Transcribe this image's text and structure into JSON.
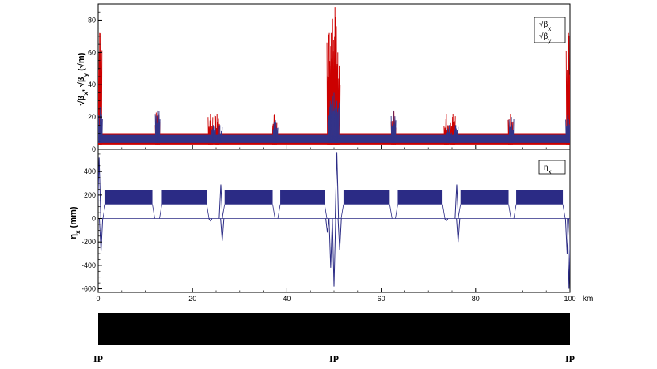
{
  "chart_data": [
    {
      "type": "line",
      "panel": "top",
      "ylabel": "√β_x, √β_y (√m)",
      "ylabel_parts": {
        "a": "√β",
        "a_sub": "x",
        "sep": ", ",
        "b": "√β",
        "b_sub": "y",
        "unit": " (√m)"
      },
      "ylim": [
        0,
        90
      ],
      "yticks": [
        "0",
        "20",
        "40",
        "60",
        "80"
      ],
      "ytick_values": [
        0,
        20,
        40,
        60,
        80
      ],
      "legend": {
        "placement": "top-right",
        "entries": [
          {
            "base": "√β",
            "sub": "x"
          },
          {
            "base": "√β",
            "sub": "y"
          }
        ]
      },
      "series": [
        {
          "key": "sqrt_beta_x",
          "color": "#cc0000",
          "band_range": [
            3,
            10
          ],
          "peaks": [
            [
              0.3,
              72
            ],
            [
              12.6,
              24
            ],
            [
              23.8,
              22
            ],
            [
              25.2,
              22
            ],
            [
              37.4,
              22
            ],
            [
              49.0,
              72
            ],
            [
              49.4,
              72
            ],
            [
              50.2,
              88
            ],
            [
              50.8,
              60
            ],
            [
              62.6,
              24
            ],
            [
              73.8,
              22
            ],
            [
              75.2,
              22
            ],
            [
              87.4,
              22
            ],
            [
              99.7,
              72
            ]
          ]
        },
        {
          "key": "sqrt_beta_y",
          "color": "#333388",
          "band_range": [
            4,
            9
          ],
          "peaks": [
            [
              0.4,
              26
            ],
            [
              12.6,
              24
            ],
            [
              24.4,
              15
            ],
            [
              25.8,
              15
            ],
            [
              37.6,
              18
            ],
            [
              49.2,
              30
            ],
            [
              50.0,
              35
            ],
            [
              50.6,
              30
            ],
            [
              62.6,
              24
            ],
            [
              74.4,
              15
            ],
            [
              75.8,
              15
            ],
            [
              87.6,
              20
            ],
            [
              99.6,
              26
            ]
          ]
        }
      ]
    },
    {
      "type": "line",
      "panel": "bottom",
      "ylabel": "η_x (mm)",
      "ylabel_parts": {
        "a": "η",
        "a_sub": "x",
        "unit": " (mm)"
      },
      "ylim": [
        -630,
        590
      ],
      "yticks": [
        "-600",
        "-400",
        "-200",
        "0",
        "200",
        "400"
      ],
      "ytick_values": [
        -600,
        -400,
        -200,
        0,
        200,
        400
      ],
      "legend": {
        "placement": "top-right",
        "entries": [
          {
            "base": "η",
            "sub": "x"
          }
        ]
      },
      "series": [
        {
          "key": "eta_x",
          "color": "#2b2b85",
          "arc_segments": [
            [
              1.5,
              11.5
            ],
            [
              13.5,
              23.0
            ],
            [
              26.8,
              37.0
            ],
            [
              38.6,
              48.0
            ],
            [
              52.0,
              61.8
            ],
            [
              63.5,
              73.0
            ],
            [
              76.8,
              87.0
            ],
            [
              88.6,
              98.5
            ]
          ],
          "arc_band": [
            120,
            245
          ],
          "spikes": [
            [
              0.2,
              520
            ],
            [
              0.6,
              -280
            ],
            [
              23.8,
              -20
            ],
            [
              26.0,
              290
            ],
            [
              26.3,
              -190
            ],
            [
              48.6,
              -120
            ],
            [
              49.3,
              -420
            ],
            [
              50.0,
              -580
            ],
            [
              50.6,
              560
            ],
            [
              51.2,
              -270
            ],
            [
              73.8,
              -20
            ],
            [
              76.0,
              290
            ],
            [
              76.3,
              -200
            ],
            [
              99.4,
              -300
            ],
            [
              99.8,
              -600
            ]
          ]
        }
      ]
    }
  ],
  "x_axis": {
    "xlim": [
      0,
      100
    ],
    "xticks": [
      "0",
      "20",
      "40",
      "60",
      "80",
      "100"
    ],
    "xtick_values": [
      0,
      20,
      40,
      60,
      80,
      100
    ],
    "unit": "km"
  },
  "lattice_bar": {
    "color": "#000000"
  },
  "ip_markers": [
    {
      "label": "IP",
      "x": 0
    },
    {
      "label": "IP",
      "x": 50
    },
    {
      "label": "IP",
      "x": 100
    }
  ]
}
